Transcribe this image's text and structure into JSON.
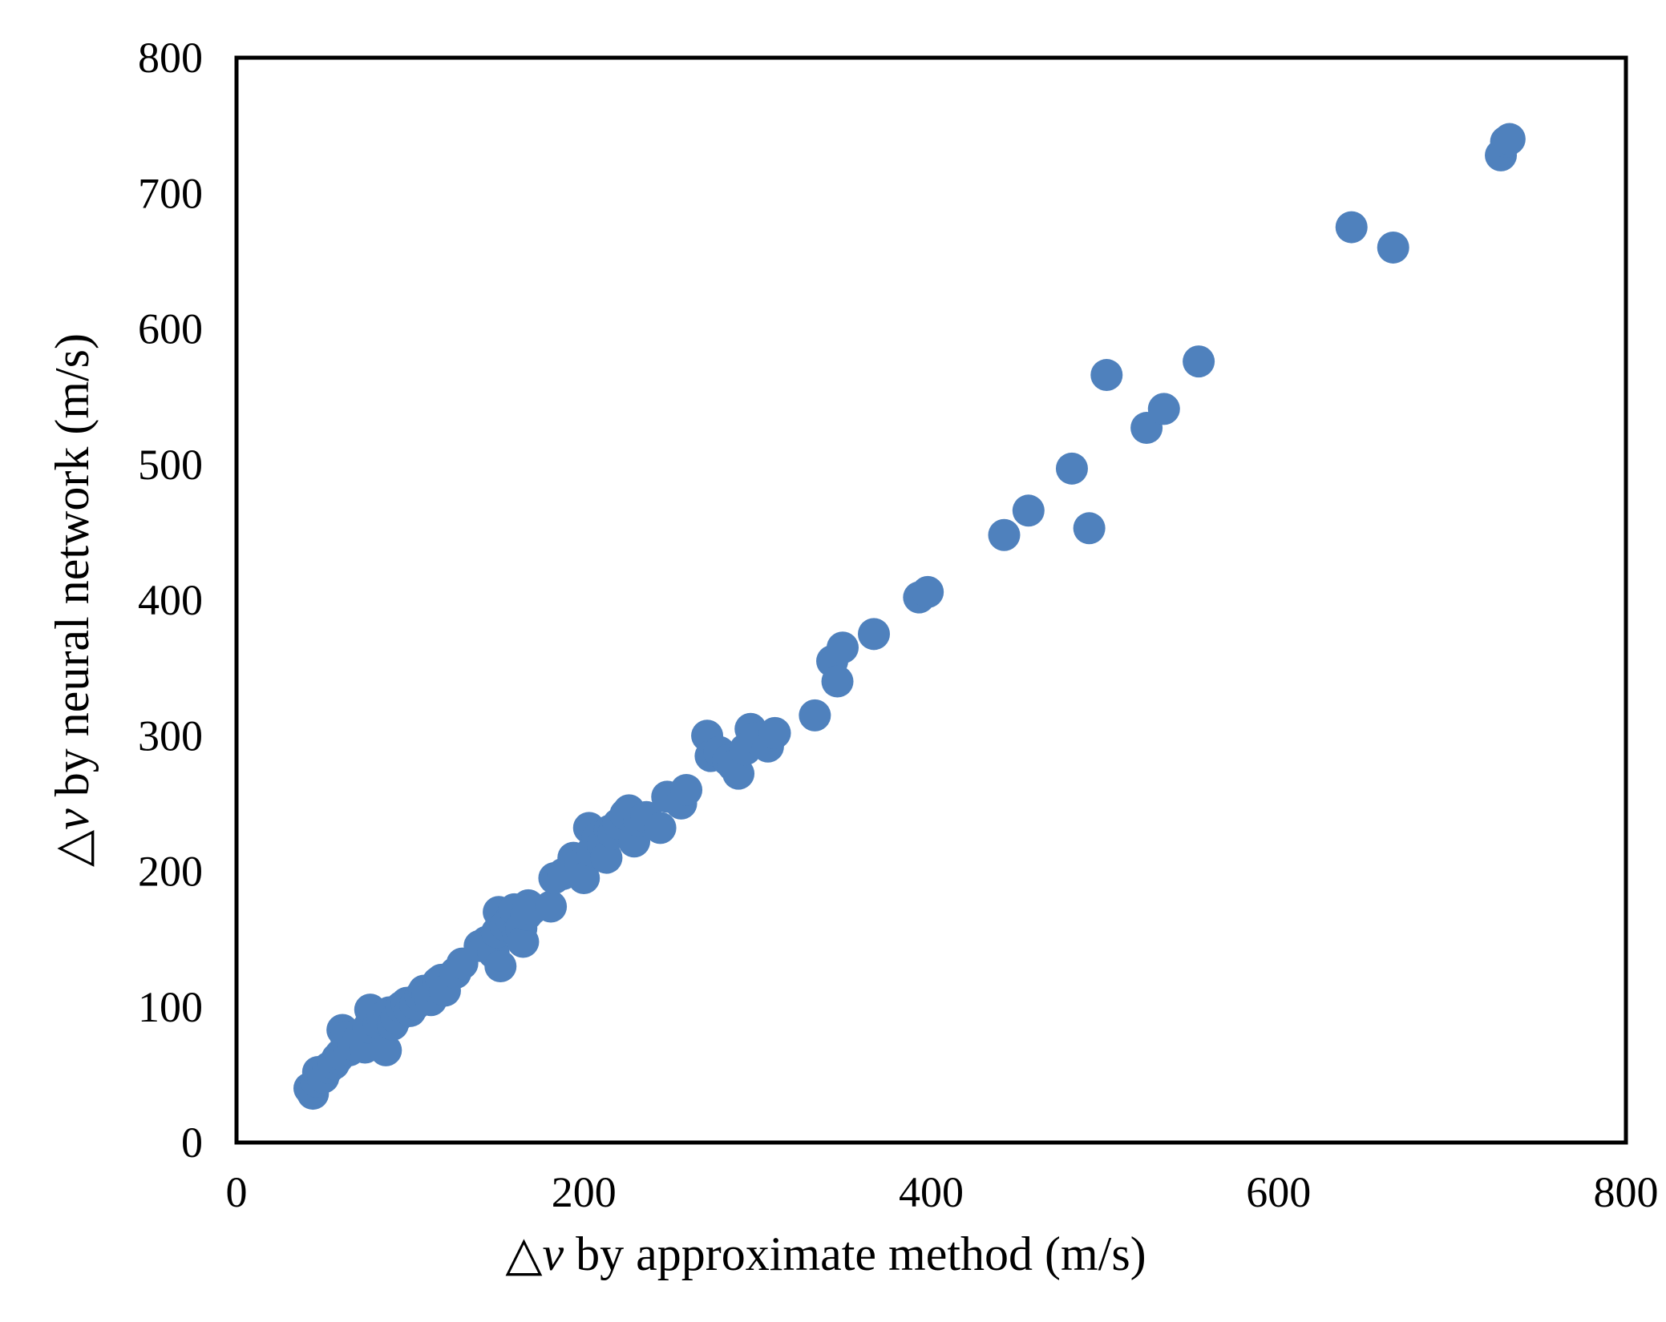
{
  "chart_data": {
    "type": "scatter",
    "title": "",
    "xlabel": {
      "prefix": "△",
      "variable": "v",
      "suffix": " by approximate method (m/s)"
    },
    "ylabel": {
      "prefix": "△",
      "variable": "v",
      "suffix": " by neural network (m/s)"
    },
    "xlim": [
      0,
      800
    ],
    "ylim": [
      0,
      800
    ],
    "xticks": [
      0,
      200,
      400,
      600,
      800
    ],
    "yticks": [
      0,
      100,
      200,
      300,
      400,
      500,
      600,
      700,
      800
    ],
    "grid": false,
    "legend": "none",
    "marker_color": "#4F81BD",
    "points": [
      [
        42,
        40
      ],
      [
        44,
        36
      ],
      [
        46,
        45
      ],
      [
        47,
        52
      ],
      [
        50,
        48
      ],
      [
        53,
        55
      ],
      [
        56,
        58
      ],
      [
        58,
        62
      ],
      [
        60,
        65
      ],
      [
        61,
        83
      ],
      [
        63,
        78
      ],
      [
        65,
        68
      ],
      [
        67,
        72
      ],
      [
        70,
        75
      ],
      [
        72,
        80
      ],
      [
        74,
        70
      ],
      [
        76,
        85
      ],
      [
        77,
        98
      ],
      [
        79,
        90
      ],
      [
        80,
        95
      ],
      [
        82,
        88
      ],
      [
        84,
        92
      ],
      [
        86,
        68
      ],
      [
        88,
        96
      ],
      [
        90,
        87
      ],
      [
        92,
        92
      ],
      [
        95,
        100
      ],
      [
        98,
        103
      ],
      [
        100,
        97
      ],
      [
        103,
        102
      ],
      [
        106,
        108
      ],
      [
        108,
        112
      ],
      [
        110,
        110
      ],
      [
        112,
        105
      ],
      [
        114,
        115
      ],
      [
        116,
        118
      ],
      [
        118,
        120
      ],
      [
        120,
        112
      ],
      [
        126,
        125
      ],
      [
        130,
        132
      ],
      [
        140,
        145
      ],
      [
        144,
        148
      ],
      [
        148,
        140
      ],
      [
        150,
        155
      ],
      [
        151,
        170
      ],
      [
        152,
        130
      ],
      [
        155,
        160
      ],
      [
        158,
        165
      ],
      [
        160,
        172
      ],
      [
        162,
        155
      ],
      [
        164,
        158
      ],
      [
        165,
        148
      ],
      [
        167,
        168
      ],
      [
        168,
        175
      ],
      [
        170,
        172
      ],
      [
        181,
        174
      ],
      [
        183,
        195
      ],
      [
        188,
        198
      ],
      [
        194,
        210
      ],
      [
        198,
        205
      ],
      [
        200,
        195
      ],
      [
        203,
        232
      ],
      [
        205,
        215
      ],
      [
        208,
        225
      ],
      [
        211,
        220
      ],
      [
        213,
        210
      ],
      [
        215,
        230
      ],
      [
        217,
        228
      ],
      [
        220,
        235
      ],
      [
        224,
        242
      ],
      [
        226,
        245
      ],
      [
        229,
        222
      ],
      [
        232,
        237
      ],
      [
        236,
        240
      ],
      [
        244,
        232
      ],
      [
        248,
        255
      ],
      [
        256,
        250
      ],
      [
        259,
        260
      ],
      [
        271,
        300
      ],
      [
        273,
        285
      ],
      [
        278,
        288
      ],
      [
        283,
        282
      ],
      [
        286,
        278
      ],
      [
        289,
        272
      ],
      [
        293,
        290
      ],
      [
        296,
        305
      ],
      [
        299,
        298
      ],
      [
        306,
        292
      ],
      [
        310,
        302
      ],
      [
        333,
        315
      ],
      [
        343,
        355
      ],
      [
        346,
        340
      ],
      [
        349,
        365
      ],
      [
        367,
        375
      ],
      [
        393,
        402
      ],
      [
        398,
        406
      ],
      [
        442,
        448
      ],
      [
        456,
        466
      ],
      [
        481,
        497
      ],
      [
        491,
        453
      ],
      [
        501,
        566
      ],
      [
        524,
        527
      ],
      [
        534,
        541
      ],
      [
        554,
        576
      ],
      [
        642,
        675
      ],
      [
        666,
        660
      ],
      [
        728,
        728
      ],
      [
        731,
        738
      ],
      [
        733,
        740
      ]
    ]
  }
}
